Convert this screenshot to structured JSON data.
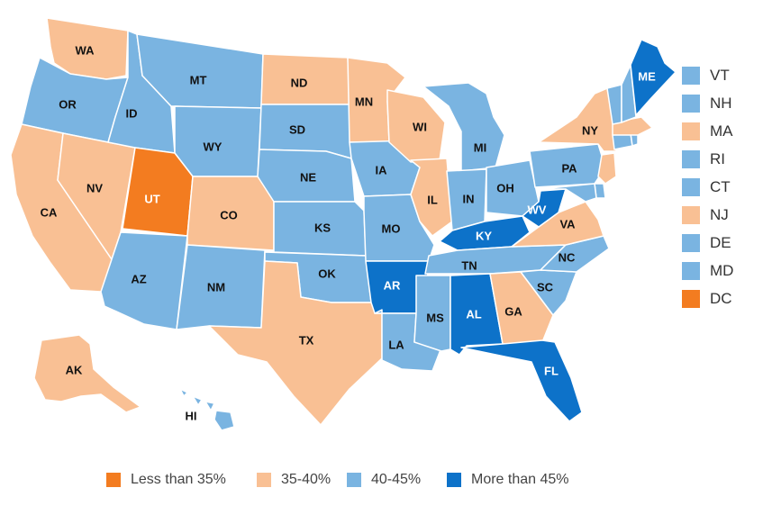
{
  "colors": {
    "less_than_35": "#f37c20",
    "35_40": "#f9c094",
    "40_45": "#7ab4e1",
    "more_than_45": "#0d72c9"
  },
  "legend": [
    {
      "label": "Less than 35%",
      "category": "less_than_35"
    },
    {
      "label": "35-40%",
      "category": "35_40"
    },
    {
      "label": "40-45%",
      "category": "40_45"
    },
    {
      "label": "More than 45%",
      "category": "more_than_45"
    }
  ],
  "side_legend": [
    {
      "code": "VT",
      "category": "40_45"
    },
    {
      "code": "NH",
      "category": "40_45"
    },
    {
      "code": "MA",
      "category": "35_40"
    },
    {
      "code": "RI",
      "category": "40_45"
    },
    {
      "code": "CT",
      "category": "40_45"
    },
    {
      "code": "NJ",
      "category": "35_40"
    },
    {
      "code": "DE",
      "category": "40_45"
    },
    {
      "code": "MD",
      "category": "40_45"
    },
    {
      "code": "DC",
      "category": "less_than_35"
    }
  ],
  "states": [
    {
      "code": "WA",
      "category": "35_40"
    },
    {
      "code": "OR",
      "category": "40_45"
    },
    {
      "code": "CA",
      "category": "35_40"
    },
    {
      "code": "NV",
      "category": "35_40"
    },
    {
      "code": "ID",
      "category": "40_45"
    },
    {
      "code": "MT",
      "category": "40_45"
    },
    {
      "code": "WY",
      "category": "40_45"
    },
    {
      "code": "UT",
      "category": "less_than_35"
    },
    {
      "code": "AZ",
      "category": "40_45"
    },
    {
      "code": "CO",
      "category": "35_40"
    },
    {
      "code": "NM",
      "category": "40_45"
    },
    {
      "code": "ND",
      "category": "35_40"
    },
    {
      "code": "SD",
      "category": "40_45"
    },
    {
      "code": "NE",
      "category": "40_45"
    },
    {
      "code": "KS",
      "category": "40_45"
    },
    {
      "code": "OK",
      "category": "40_45"
    },
    {
      "code": "TX",
      "category": "35_40"
    },
    {
      "code": "MN",
      "category": "35_40"
    },
    {
      "code": "IA",
      "category": "40_45"
    },
    {
      "code": "MO",
      "category": "40_45"
    },
    {
      "code": "AR",
      "category": "more_than_45"
    },
    {
      "code": "LA",
      "category": "40_45"
    },
    {
      "code": "WI",
      "category": "35_40"
    },
    {
      "code": "IL",
      "category": "35_40"
    },
    {
      "code": "MI",
      "category": "40_45"
    },
    {
      "code": "IN",
      "category": "40_45"
    },
    {
      "code": "OH",
      "category": "40_45"
    },
    {
      "code": "KY",
      "category": "more_than_45"
    },
    {
      "code": "TN",
      "category": "40_45"
    },
    {
      "code": "MS",
      "category": "40_45"
    },
    {
      "code": "AL",
      "category": "more_than_45"
    },
    {
      "code": "GA",
      "category": "35_40"
    },
    {
      "code": "FL",
      "category": "more_than_45"
    },
    {
      "code": "SC",
      "category": "40_45"
    },
    {
      "code": "NC",
      "category": "40_45"
    },
    {
      "code": "VA",
      "category": "35_40"
    },
    {
      "code": "WV",
      "category": "more_than_45"
    },
    {
      "code": "PA",
      "category": "40_45"
    },
    {
      "code": "NY",
      "category": "35_40"
    },
    {
      "code": "ME",
      "category": "more_than_45"
    },
    {
      "code": "VT",
      "category": "40_45"
    },
    {
      "code": "NH",
      "category": "40_45"
    },
    {
      "code": "MA",
      "category": "35_40"
    },
    {
      "code": "RI",
      "category": "40_45"
    },
    {
      "code": "CT",
      "category": "40_45"
    },
    {
      "code": "NJ",
      "category": "35_40"
    },
    {
      "code": "DE",
      "category": "40_45"
    },
    {
      "code": "MD",
      "category": "40_45"
    },
    {
      "code": "AK",
      "category": "35_40"
    },
    {
      "code": "HI",
      "category": "40_45"
    }
  ]
}
